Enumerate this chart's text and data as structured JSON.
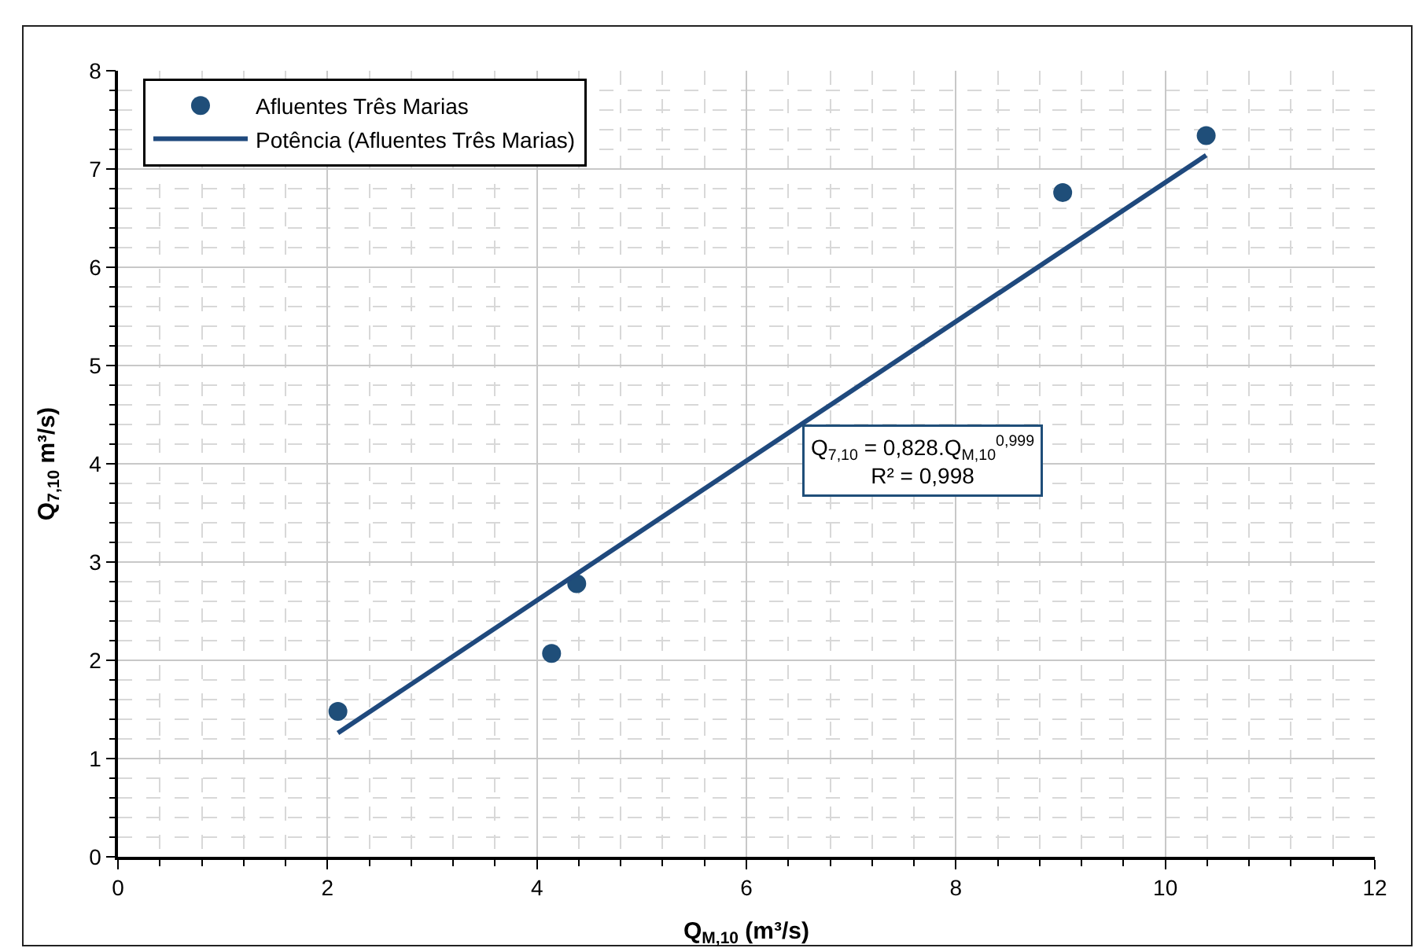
{
  "chart_data": {
    "type": "scatter",
    "xlabel": "Q$_{M,10}$ (m³/s)",
    "ylabel": "Q$_{7,10}$ m³/s)",
    "series": [
      {
        "name": "Afluentes Três Marias",
        "color": "#1f4e79",
        "marker": "circle",
        "x": [
          2.1,
          4.14,
          4.38,
          9.02,
          10.39
        ],
        "values": [
          1.48,
          2.07,
          2.78,
          6.76,
          7.34
        ]
      },
      {
        "name": "Potência (Afluentes Três Marias)",
        "type": "line",
        "color": "#1f497d",
        "line_style": "solid",
        "x": [
          2.1,
          6,
          10.39
        ],
        "values": [
          1.26,
          4.03,
          7.14
        ]
      }
    ],
    "annotations": [
      "Q$_{7,10}$ = 0,828.Q$_{M,10}$$^{0,999}$\nR² = 0,998"
    ],
    "xlim": [
      0,
      12
    ],
    "xticks": [
      0,
      2,
      4,
      6,
      8,
      10,
      12
    ],
    "ylim": [
      0,
      8
    ],
    "yticks": [
      0,
      1,
      2,
      3,
      4,
      5,
      6,
      7,
      8
    ],
    "grid": true,
    "legend": "top left"
  }
}
